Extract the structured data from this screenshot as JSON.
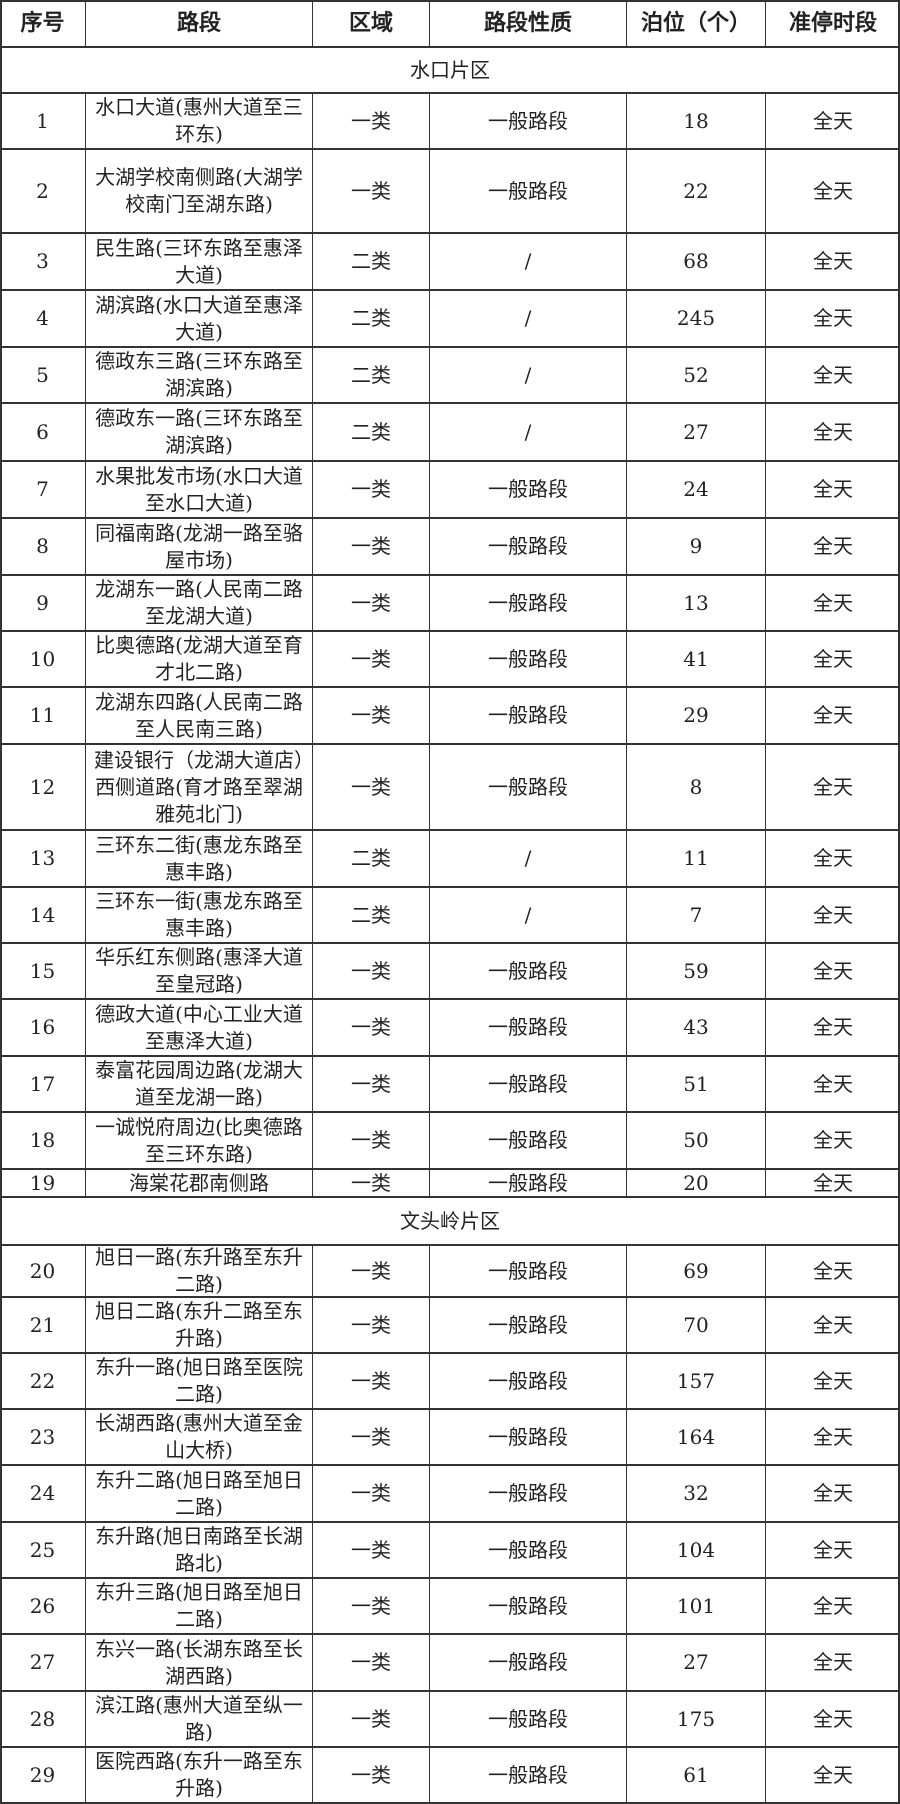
{
  "headers": [
    "序号",
    "路段",
    "区域",
    "路段性质",
    "泊位（个）",
    "准停时段"
  ],
  "sections": [
    {
      "title": "水口片区",
      "rows": [
        [
          "1",
          "水口大道(惠州大道至三环东)",
          "一类",
          "一般路段",
          "18",
          "全天"
        ],
        [
          "2",
          "大湖学校南侧路(大湖学校南门至湖东路)",
          "一类",
          "一般路段",
          "22",
          "全天"
        ],
        [
          "3",
          "民生路(三环东路至惠泽大道)",
          "二类",
          "/",
          "68",
          "全天"
        ],
        [
          "4",
          "湖滨路(水口大道至惠泽大道)",
          "二类",
          "/",
          "245",
          "全天"
        ],
        [
          "5",
          "德政东三路(三环东路至湖滨路)",
          "二类",
          "/",
          "52",
          "全天"
        ],
        [
          "6",
          "德政东一路(三环东路至湖滨路)",
          "二类",
          "/",
          "27",
          "全天"
        ],
        [
          "7",
          "水果批发市场(水口大道至水口大道)",
          "一类",
          "一般路段",
          "24",
          "全天"
        ],
        [
          "8",
          "同福南路(龙湖一路至骆屋市场)",
          "一类",
          "一般路段",
          "9",
          "全天"
        ],
        [
          "9",
          "龙湖东一路(人民南二路至龙湖大道)",
          "一类",
          "一般路段",
          "13",
          "全天"
        ],
        [
          "10",
          "比奥德路(龙湖大道至育才北二路)",
          "一类",
          "一般路段",
          "41",
          "全天"
        ],
        [
          "11",
          "龙湖东四路(人民南二路至人民南三路)",
          "一类",
          "一般路段",
          "29",
          "全天"
        ],
        [
          "12",
          "建设银行（龙湖大道店）西侧道路(育才路至翠湖雅苑北门)",
          "一类",
          "一般路段",
          "8",
          "全天"
        ],
        [
          "13",
          "三环东二街(惠龙东路至惠丰路)",
          "二类",
          "/",
          "11",
          "全天"
        ],
        [
          "14",
          "三环东一街(惠龙东路至惠丰路)",
          "二类",
          "/",
          "7",
          "全天"
        ],
        [
          "15",
          "华乐红东侧路(惠泽大道至皇冠路)",
          "一类",
          "一般路段",
          "59",
          "全天"
        ],
        [
          "16",
          "德政大道(中心工业大道至惠泽大道)",
          "一类",
          "一般路段",
          "43",
          "全天"
        ],
        [
          "17",
          "泰富花园周边路(龙湖大道至龙湖一路)",
          "一类",
          "一般路段",
          "51",
          "全天"
        ],
        [
          "18",
          "一诚悦府周边(比奥德路至三环东路)",
          "一类",
          "一般路段",
          "50",
          "全天"
        ],
        [
          "19",
          "海棠花郡南侧路",
          "一类",
          "一般路段",
          "20",
          "全天"
        ]
      ]
    },
    {
      "title": "文头岭片区",
      "rows": [
        [
          "20",
          "旭日一路(东升路至东升二路)",
          "一类",
          "一般路段",
          "69",
          "全天"
        ],
        [
          "21",
          "旭日二路(东升二路至东升路)",
          "一类",
          "一般路段",
          "70",
          "全天"
        ],
        [
          "22",
          "东升一路(旭日路至医院二路)",
          "一类",
          "一般路段",
          "157",
          "全天"
        ],
        [
          "23",
          "长湖西路(惠州大道至金山大桥)",
          "一类",
          "一般路段",
          "164",
          "全天"
        ],
        [
          "24",
          "东升二路(旭日路至旭日二路)",
          "一类",
          "一般路段",
          "32",
          "全天"
        ],
        [
          "25",
          "东升路(旭日南路至长湖路北)",
          "一类",
          "一般路段",
          "104",
          "全天"
        ],
        [
          "26",
          "东升三路(旭日路至旭日二路)",
          "一类",
          "一般路段",
          "101",
          "全天"
        ],
        [
          "27",
          "东兴一路(长湖东路至长湖西路)",
          "一类",
          "一般路段",
          "27",
          "全天"
        ],
        [
          "28",
          "滨江路(惠州大道至纵一路)",
          "一类",
          "一般路段",
          "175",
          "全天"
        ],
        [
          "29",
          "医院西路(东升一路至东升路)",
          "一类",
          "一般路段",
          "61",
          "全天"
        ]
      ]
    }
  ]
}
